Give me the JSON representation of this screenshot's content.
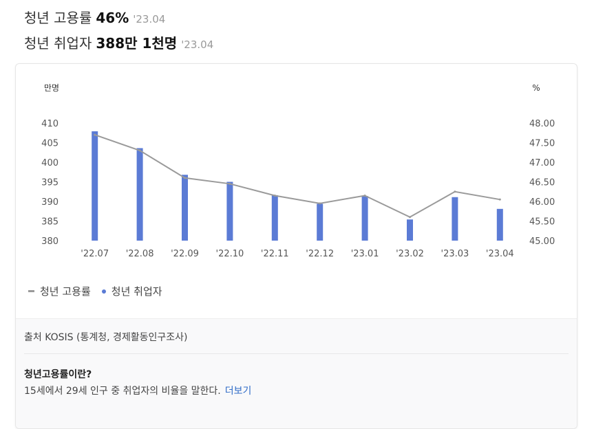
{
  "headlines": [
    {
      "label": "청년 고용률",
      "value": "46%",
      "date": "'23.04"
    },
    {
      "label": "청년 취업자",
      "value": "388만 1천명",
      "date": "'23.04"
    }
  ],
  "chart_data": {
    "type": "bar+line",
    "categories": [
      "'22.07",
      "'22.08",
      "'22.09",
      "'22.10",
      "'22.11",
      "'22.12",
      "'23.01",
      "'23.02",
      "'23.03",
      "'23.04"
    ],
    "series": [
      {
        "name": "청년 취업자",
        "type": "bar",
        "axis": "left",
        "color": "#5b7bd5",
        "values": [
          407.9,
          403.6,
          396.8,
          395.0,
          391.6,
          389.4,
          391.4,
          385.4,
          391.1,
          388.1
        ]
      },
      {
        "name": "청년 고용률",
        "type": "line",
        "axis": "right",
        "color": "#9a9a9a",
        "values": [
          47.7,
          47.3,
          46.6,
          46.45,
          46.15,
          45.95,
          46.15,
          45.6,
          46.25,
          46.05
        ]
      }
    ],
    "y_left": {
      "unit": "만명",
      "ticks": [
        "410",
        "405",
        "400",
        "395",
        "390",
        "385",
        "380"
      ],
      "min": 380,
      "max": 410
    },
    "y_right": {
      "unit": "%",
      "ticks": [
        "48.00",
        "47.50",
        "47.00",
        "46.50",
        "46.00",
        "45.50",
        "45.00"
      ],
      "min": 45,
      "max": 48
    },
    "legend_position": "bottom-left",
    "grid": false
  },
  "legend": {
    "line_label": "청년 고용률",
    "bar_label": "청년 취업자"
  },
  "source": "출처 KOSIS (통계청, 경제활동인구조사)",
  "definition": {
    "title": "청년고용률이란?",
    "text": "15세에서 29세 인구 중 취업자의 비율을 말한다.",
    "link": "더보기"
  }
}
